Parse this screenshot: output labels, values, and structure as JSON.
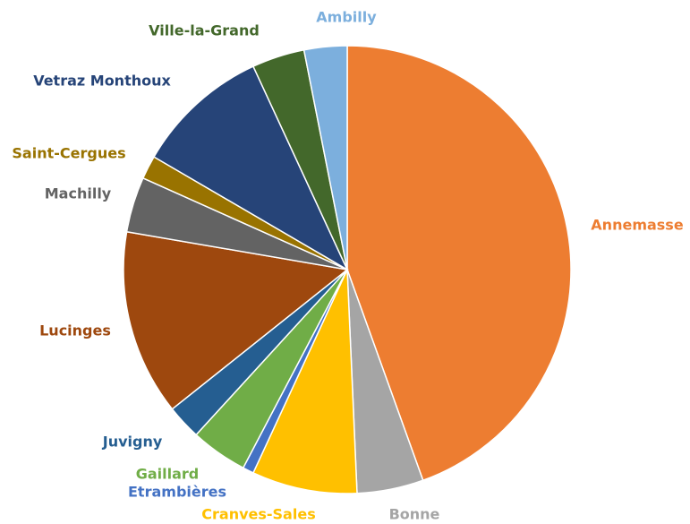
{
  "chart_data": {
    "type": "pie",
    "categories": [
      "Annemasse",
      "Bonne",
      "Cranves-Sales",
      "Etrambières",
      "Gaillard",
      "Juvigny",
      "Lucinges",
      "Machilly",
      "Saint-Cergues",
      "Vetraz Monthoux",
      "Ville-la-Grand",
      "Ambilly"
    ],
    "values": [
      44.5,
      4.8,
      7.6,
      0.8,
      4.1,
      2.5,
      13.4,
      4.0,
      1.7,
      9.7,
      3.8,
      3.1
    ],
    "colors": [
      "#ED7D31",
      "#A5A5A5",
      "#FFC000",
      "#4472C4",
      "#70AD47",
      "#255E91",
      "#9E480E",
      "#636363",
      "#997300",
      "#264478",
      "#43682B",
      "#7CAFDD"
    ]
  }
}
